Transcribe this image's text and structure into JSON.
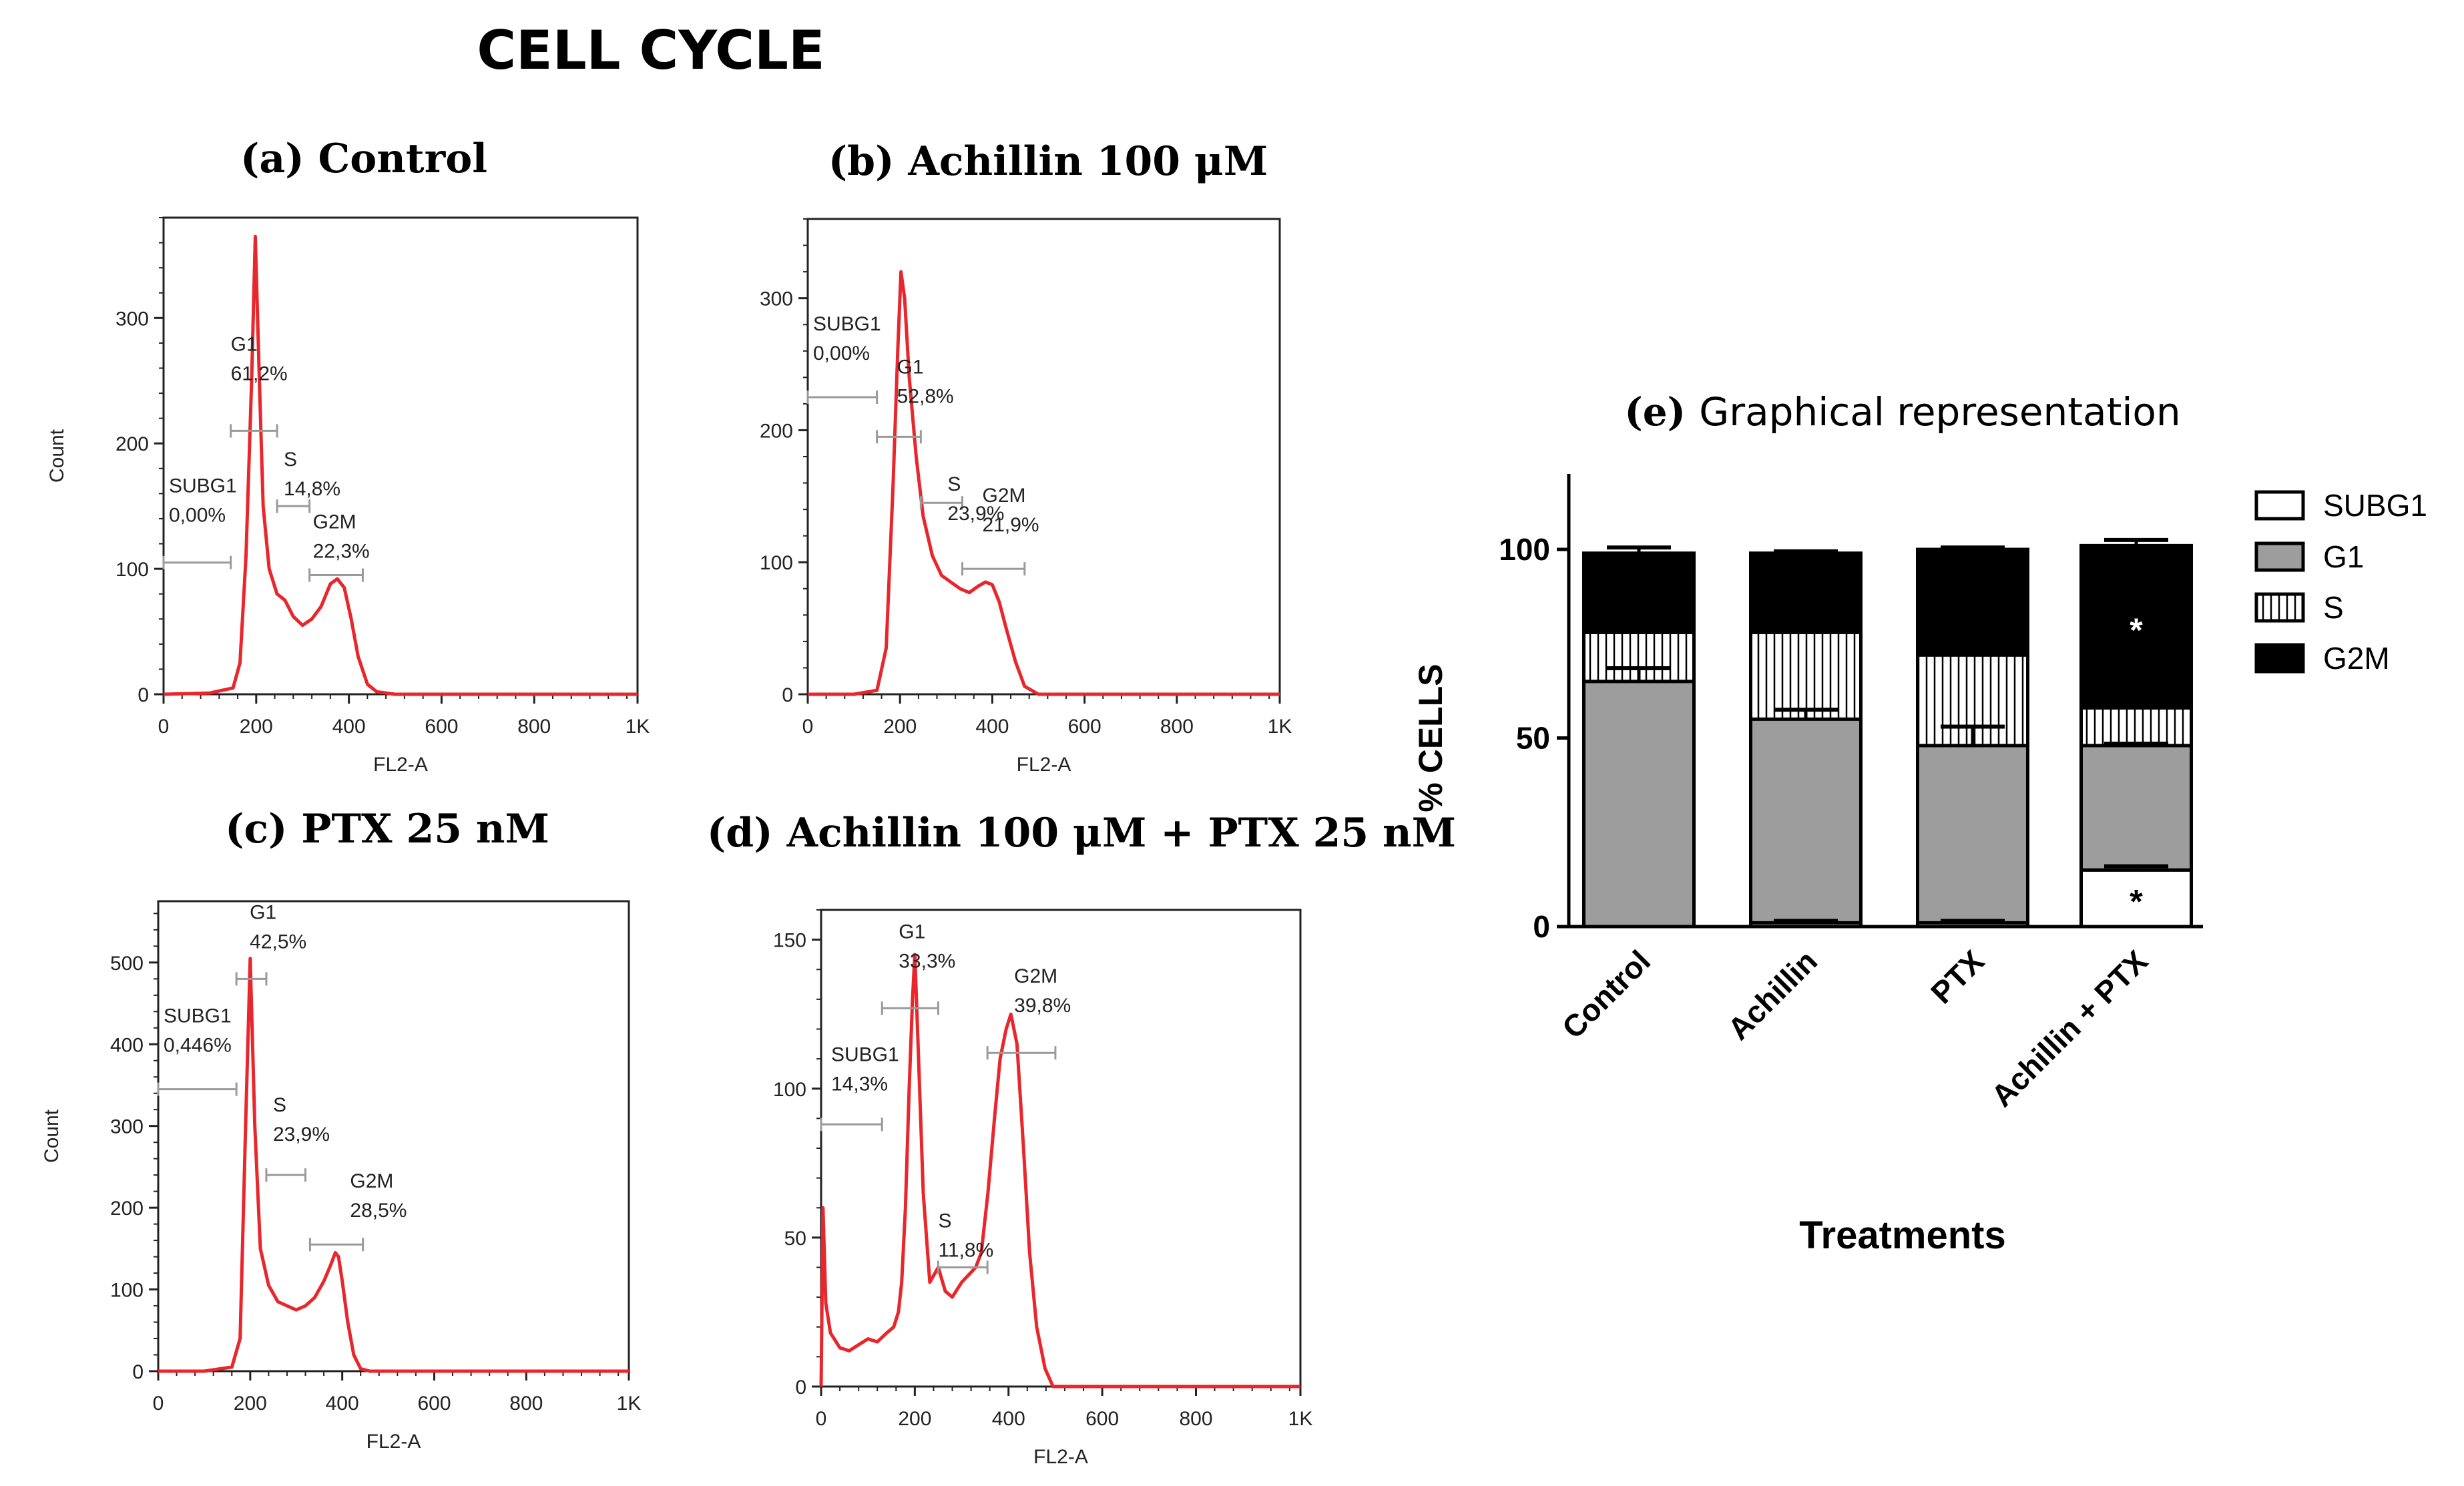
{
  "figure": {
    "main_title": "CELL CYCLE",
    "colors": {
      "trace": "#e8262b",
      "gate": "#9a9a9a",
      "g1_fill": "#9d9d9d",
      "s_fill": "#ffffff",
      "g2m_fill": "#000000",
      "subg1_fill": "#ffffff"
    }
  },
  "chart_data": [
    {
      "id": "a",
      "type": "line",
      "title_letter": "(a)",
      "title_text": "Control",
      "xlabel": "FL2-A",
      "ylabel": "Count",
      "xlim": [
        0,
        1023
      ],
      "ylim": [
        0,
        380
      ],
      "yticks": [
        0,
        100,
        200,
        300
      ],
      "xticks": [
        0,
        200,
        400,
        600,
        800,
        1023
      ],
      "xtick_labels": [
        "0",
        "200",
        "400",
        "600",
        "800",
        "1K"
      ],
      "x": [
        0,
        100,
        150,
        165,
        178,
        190,
        198,
        206,
        215,
        228,
        245,
        262,
        280,
        300,
        320,
        340,
        360,
        375,
        390,
        405,
        420,
        440,
        460,
        500,
        700,
        1023
      ],
      "y": [
        0,
        1,
        5,
        25,
        110,
        250,
        365,
        260,
        150,
        100,
        80,
        75,
        62,
        55,
        60,
        70,
        88,
        92,
        85,
        60,
        30,
        8,
        2,
        0,
        0,
        0
      ],
      "gates": [
        {
          "name": "SUBG1",
          "pct": "0,00%",
          "x1": 0,
          "x2": 145,
          "y": 105
        },
        {
          "name": "G1",
          "pct": "61,2%",
          "x1": 145,
          "x2": 245,
          "y": 210
        },
        {
          "name": "S",
          "pct": "14,8%",
          "x1": 245,
          "x2": 315,
          "y": 150
        },
        {
          "name": "G2M",
          "pct": "22,3%",
          "x1": 315,
          "x2": 430,
          "y": 95
        }
      ]
    },
    {
      "id": "b",
      "type": "line",
      "title_letter": "(b)",
      "title_text": "Achillin 100 μM",
      "xlabel": "FL2-A",
      "ylabel": "",
      "xlim": [
        0,
        1023
      ],
      "ylim": [
        0,
        360
      ],
      "yticks": [
        0,
        100,
        200,
        300
      ],
      "xticks": [
        0,
        200,
        400,
        600,
        800,
        1023
      ],
      "xtick_labels": [
        "0",
        "200",
        "400",
        "600",
        "800",
        "1K"
      ],
      "x": [
        0,
        100,
        150,
        170,
        185,
        195,
        202,
        210,
        220,
        235,
        250,
        270,
        290,
        310,
        330,
        350,
        370,
        385,
        400,
        415,
        430,
        450,
        470,
        500,
        700,
        1023
      ],
      "y": [
        0,
        0,
        3,
        35,
        160,
        260,
        320,
        300,
        240,
        180,
        135,
        105,
        90,
        85,
        80,
        77,
        82,
        85,
        83,
        70,
        50,
        25,
        6,
        0,
        0,
        0
      ],
      "gates": [
        {
          "name": "SUBG1",
          "pct": "0,00%",
          "x1": 0,
          "x2": 150,
          "y": 225
        },
        {
          "name": "G1",
          "pct": "52,8%",
          "x1": 150,
          "x2": 245,
          "y": 195
        },
        {
          "name": "S",
          "pct": "23,9%",
          "x1": 245,
          "x2": 335,
          "y": 145
        },
        {
          "name": "G2M",
          "pct": "21,9%",
          "x1": 335,
          "x2": 470,
          "y": 95
        }
      ]
    },
    {
      "id": "c",
      "type": "line",
      "title_letter": "(c)",
      "title_text": "PTX 25 nM",
      "xlabel": "FL2-A",
      "ylabel": "Count",
      "xlim": [
        0,
        1023
      ],
      "ylim": [
        0,
        575
      ],
      "yticks": [
        0,
        100,
        200,
        300,
        400,
        500
      ],
      "xticks": [
        0,
        200,
        400,
        600,
        800,
        1023
      ],
      "xtick_labels": [
        "0",
        "200",
        "400",
        "600",
        "800",
        "1K"
      ],
      "x": [
        0,
        100,
        160,
        178,
        190,
        200,
        210,
        222,
        240,
        260,
        280,
        300,
        320,
        340,
        360,
        375,
        385,
        392,
        400,
        412,
        425,
        440,
        460,
        600,
        1023
      ],
      "y": [
        0,
        0,
        5,
        40,
        300,
        505,
        300,
        150,
        105,
        85,
        80,
        75,
        80,
        90,
        110,
        130,
        145,
        140,
        110,
        60,
        20,
        3,
        0,
        0,
        0
      ],
      "gates": [
        {
          "name": "SUBG1",
          "pct": "0,446%",
          "x1": 0,
          "x2": 170,
          "y": 345
        },
        {
          "name": "G1",
          "pct": "42,5%",
          "x1": 170,
          "x2": 235,
          "y": 480
        },
        {
          "name": "S",
          "pct": "23,9%",
          "x1": 235,
          "x2": 320,
          "y": 240
        },
        {
          "name": "G2M",
          "pct": "28,5%",
          "x1": 330,
          "x2": 445,
          "y": 155
        }
      ]
    },
    {
      "id": "d",
      "type": "line",
      "title_letter": "(d)",
      "title_text": "Achillin 100 μM + PTX 25 nM",
      "xlabel": "FL2-A",
      "ylabel": "",
      "xlim": [
        0,
        1023
      ],
      "ylim": [
        0,
        160
      ],
      "yticks": [
        0,
        50,
        100,
        150
      ],
      "xticks": [
        0,
        200,
        400,
        600,
        800,
        1023
      ],
      "xtick_labels": [
        "0",
        "200",
        "400",
        "600",
        "800",
        "1K"
      ],
      "x": [
        0,
        4,
        10,
        20,
        40,
        60,
        80,
        100,
        120,
        140,
        155,
        165,
        172,
        180,
        188,
        195,
        200,
        208,
        218,
        232,
        250,
        265,
        280,
        300,
        318,
        330,
        342,
        356,
        370,
        382,
        395,
        405,
        418,
        432,
        445,
        460,
        478,
        495,
        510,
        600,
        1023
      ],
      "y": [
        0,
        60,
        28,
        18,
        13,
        12,
        14,
        16,
        15,
        18,
        20,
        25,
        35,
        60,
        100,
        130,
        145,
        110,
        65,
        35,
        40,
        32,
        30,
        35,
        38,
        40,
        45,
        65,
        90,
        110,
        120,
        125,
        115,
        80,
        45,
        20,
        6,
        0,
        0,
        0,
        0
      ],
      "gates": [
        {
          "name": "SUBG1",
          "pct": "14,3%",
          "x1": 0,
          "x2": 130,
          "y": 88
        },
        {
          "name": "G1",
          "pct": "33,3%",
          "x1": 130,
          "x2": 250,
          "y": 127
        },
        {
          "name": "S",
          "pct": "11,8%",
          "x1": 250,
          "x2": 355,
          "y": 40
        },
        {
          "name": "G2M",
          "pct": "39,8%",
          "x1": 355,
          "x2": 500,
          "y": 112
        }
      ]
    },
    {
      "id": "e",
      "type": "bar",
      "stacked": true,
      "title_letter": "(e)",
      "title_text": "Graphical representation",
      "xlabel": "Treatments",
      "ylabel": "% CELLS",
      "ylim": [
        0,
        120
      ],
      "yticks": [
        0,
        50,
        100
      ],
      "categories": [
        "Control",
        "Achillin",
        "PTX",
        "Achillin + PTX"
      ],
      "series": [
        {
          "name": "SUBG1",
          "values": [
            0,
            1,
            1,
            15
          ],
          "errors": [
            0,
            0.5,
            0.5,
            1
          ]
        },
        {
          "name": "G1",
          "values": [
            65,
            54,
            47,
            33
          ],
          "errors": [
            3.5,
            2.5,
            5,
            0.5
          ]
        },
        {
          "name": "S",
          "values": [
            13,
            23,
            24,
            10
          ],
          "errors": [
            0,
            0,
            0,
            0
          ]
        },
        {
          "name": "G2M",
          "values": [
            21,
            21,
            28,
            43
          ],
          "errors": [
            1.5,
            0.5,
            0.5,
            1.5
          ]
        }
      ],
      "significance": [
        {
          "category": "Achillin + PTX",
          "series": "SUBG1",
          "mark": "*"
        },
        {
          "category": "Achillin + PTX",
          "series": "G2M",
          "mark": "*"
        }
      ],
      "legend": [
        "SUBG1",
        "G1",
        "S",
        "G2M"
      ]
    }
  ]
}
